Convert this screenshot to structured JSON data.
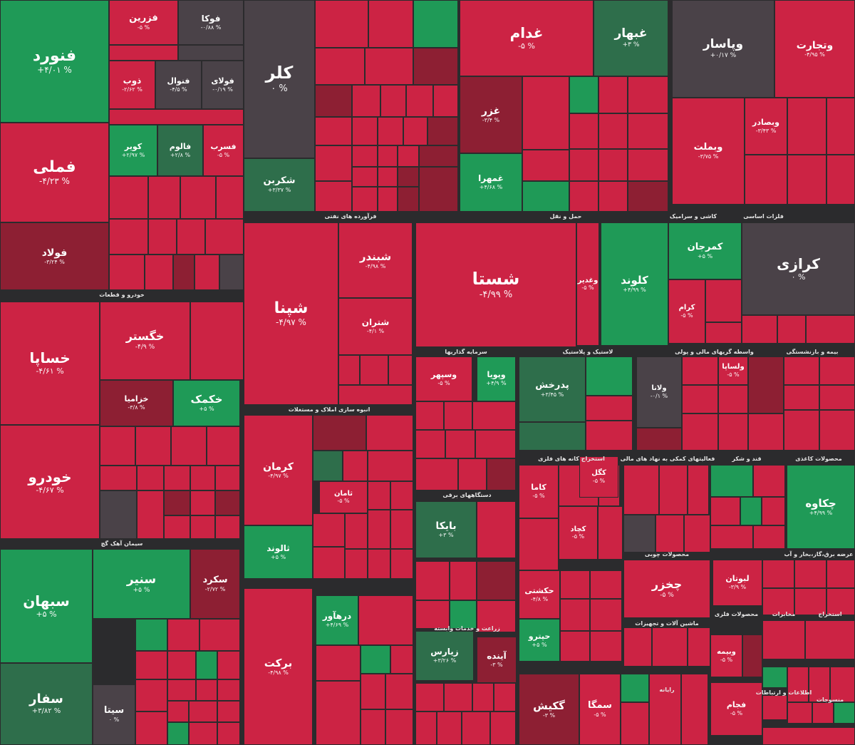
{
  "colors": {
    "pos": "#1f9a57",
    "neg": "#cc2344",
    "zero": "#4a4248",
    "negDark": "#8d1f33",
    "posDark": "#2e6e4b"
  },
  "chart_data": {
    "type": "heatmap",
    "sectors": [
      "خودرو و قطعات",
      "فرآورده های نفتی",
      "حمل و نقل",
      "سیمان آهک گچ",
      "فلزات اساسی",
      "انبوه سازی املاک و مستغلات",
      "کاشی و سرامیک",
      "سرمایه گذاریها",
      "لاستیک و پلاستیک",
      "واسطه گریهای مالی و پولی",
      "بیمه و بازنشستگی",
      "استخراج کانه های فلزی",
      "فعالیتهای کمکی به نهاد های مالی",
      "قند و شکر",
      "محصولات کاغذی",
      "دستگاههای برقی",
      "محصولات چوبی",
      "عرضه برق،گاز،بخار و آب",
      "زراعت و خدمات وابسته",
      "ماشین آلات و تجهیزات",
      "محصولات فلزی",
      "مخابرات",
      "استخراج",
      "رایانه",
      "اطلاعات و ارتباطات",
      "منسوجات"
    ],
    "tiles": [
      {
        "symbol": "فنورد",
        "change": "+۴/۰۱ %",
        "status": "pos"
      },
      {
        "symbol": "فملی",
        "change": "-۴/۲۳ %",
        "status": "neg"
      },
      {
        "symbol": "فولاد",
        "change": "-۳/۲۴ %",
        "status": "negDark"
      },
      {
        "symbol": "فزرین",
        "change": "-۵ %",
        "status": "neg"
      },
      {
        "symbol": "فوکا",
        "change": "-۰/۸۸ %",
        "status": "zero"
      },
      {
        "symbol": "ذوب",
        "change": "-۲/۶۲ %",
        "status": "neg"
      },
      {
        "symbol": "فنوال",
        "change": "-۴/۵ %",
        "status": "zero"
      },
      {
        "symbol": "فولای",
        "change": "-۰/۱۹ %",
        "status": "zero"
      },
      {
        "symbol": "کویر",
        "change": "+۲/۹۷ %",
        "status": "pos"
      },
      {
        "symbol": "فالوم",
        "change": "+۲/۸ %",
        "status": "posDark"
      },
      {
        "symbol": "فسرب",
        "change": "-۵ %",
        "status": "neg"
      },
      {
        "symbol": "کلر",
        "change": "۰ %",
        "status": "zero"
      },
      {
        "symbol": "شکربن",
        "change": "+۳/۳۷ %",
        "status": "posDark"
      },
      {
        "symbol": "غدام",
        "change": "-۵ %",
        "status": "neg"
      },
      {
        "symbol": "غبهار",
        "change": "+۳ %",
        "status": "posDark"
      },
      {
        "symbol": "غزر",
        "change": "-۳/۴ %",
        "status": "negDark"
      },
      {
        "symbol": "غمهرا",
        "change": "+۴/۶۸ %",
        "status": "pos"
      },
      {
        "symbol": "وپاسار",
        "change": "+۰/۱۷ %",
        "status": "zero"
      },
      {
        "symbol": "وتجارت",
        "change": "-۴/۹۵ %",
        "status": "neg"
      },
      {
        "symbol": "وبملت",
        "change": "-۳/۷۵ %",
        "status": "neg"
      },
      {
        "symbol": "وبصادر",
        "change": "-۳/۴۳ %",
        "status": "neg"
      },
      {
        "symbol": "خساپا",
        "change": "-۴/۶۱ %",
        "status": "neg"
      },
      {
        "symbol": "خگستر",
        "change": "-۴/۹ %",
        "status": "neg"
      },
      {
        "symbol": "خکمک",
        "change": "+۵ %",
        "status": "pos"
      },
      {
        "symbol": "خزامیا",
        "change": "-۳/۸ %",
        "status": "negDark"
      },
      {
        "symbol": "خودرو",
        "change": "-۴/۶۷ %",
        "status": "neg"
      },
      {
        "symbol": "سبهان",
        "change": "+۵ %",
        "status": "pos"
      },
      {
        "symbol": "سفار",
        "change": "+۳/۸۲ %",
        "status": "posDark"
      },
      {
        "symbol": "سنیر",
        "change": "+۵ %",
        "status": "pos"
      },
      {
        "symbol": "سکرد",
        "change": "-۲/۷۲ %",
        "status": "negDark"
      },
      {
        "symbol": "سیتا",
        "change": "۰ %",
        "status": "zero"
      },
      {
        "symbol": "شپنا",
        "change": "-۴/۹۷ %",
        "status": "neg"
      },
      {
        "symbol": "شبندر",
        "change": "-۴/۹۸ %",
        "status": "neg"
      },
      {
        "symbol": "شتران",
        "change": "-۴/۱ %",
        "status": "neg"
      },
      {
        "symbol": "شستا",
        "change": "-۴/۹۹ %",
        "status": "neg"
      },
      {
        "symbol": "کلوند",
        "change": "+۴/۹۹ %",
        "status": "pos"
      },
      {
        "symbol": "کمرجان",
        "change": "+۵ %",
        "status": "pos"
      },
      {
        "symbol": "کرازی",
        "change": "۰ %",
        "status": "zero"
      },
      {
        "symbol": "کرمان",
        "change": "-۴/۹۷ %",
        "status": "neg"
      },
      {
        "symbol": "ثالوند",
        "change": "+۵ %",
        "status": "pos"
      },
      {
        "symbol": "برکت",
        "change": "-۴/۹۸ %",
        "status": "neg"
      },
      {
        "symbol": "پدرخش",
        "change": "+۳/۴۵ %",
        "status": "posDark"
      },
      {
        "symbol": "ولانا",
        "change": "-۰/۱ %",
        "status": "zero"
      },
      {
        "symbol": "بایکا",
        "change": "+۳ %",
        "status": "posDark"
      },
      {
        "symbol": "چخزر",
        "change": "-۵ %",
        "status": "neg"
      },
      {
        "symbol": "چکاوه",
        "change": "+۴/۹۹ %",
        "status": "pos"
      },
      {
        "symbol": "گکیش",
        "change": "-۳ %",
        "status": "negDark"
      },
      {
        "symbol": "سمگا",
        "change": "-۵ %",
        "status": "neg"
      },
      {
        "symbol": "آینده",
        "change": "-۳ %",
        "status": "negDark"
      },
      {
        "symbol": "زیارس",
        "change": "+۳/۲۶ %",
        "status": "posDark"
      },
      {
        "symbol": "حکشتی",
        "change": "-۴/۸ %",
        "status": "neg"
      },
      {
        "symbol": "حپترو",
        "change": "+۵ %",
        "status": "pos"
      },
      {
        "symbol": "لبوتان",
        "change": "-۳/۹ %",
        "status": "neg"
      },
      {
        "symbol": "وبیمه",
        "change": "-۵ %",
        "status": "neg"
      },
      {
        "symbol": "فجام",
        "change": "-۵ %",
        "status": "neg"
      },
      {
        "symbol": "کگل",
        "change": "-۵ %",
        "status": "neg"
      },
      {
        "symbol": "کاما",
        "change": "-۵ %",
        "status": "neg"
      },
      {
        "symbol": "ثامان",
        "change": "-۵ %",
        "status": "neg"
      },
      {
        "symbol": "کچاد",
        "change": "-۵ %",
        "status": "neg"
      },
      {
        "symbol": "وغدیر",
        "change": "-۵ %",
        "status": "neg"
      },
      {
        "symbol": "کرام",
        "change": "-۵ %",
        "status": "neg"
      },
      {
        "symbol": "درهآور",
        "change": "+۴/۶۹ %",
        "status": "pos"
      },
      {
        "symbol": "ولساپا",
        "change": "-۵ %",
        "status": "neg"
      },
      {
        "symbol": "وپویا",
        "change": "+۴/۹ %",
        "status": "pos"
      },
      {
        "symbol": "وسپهر",
        "change": "-۵ %",
        "status": "neg"
      }
    ]
  }
}
